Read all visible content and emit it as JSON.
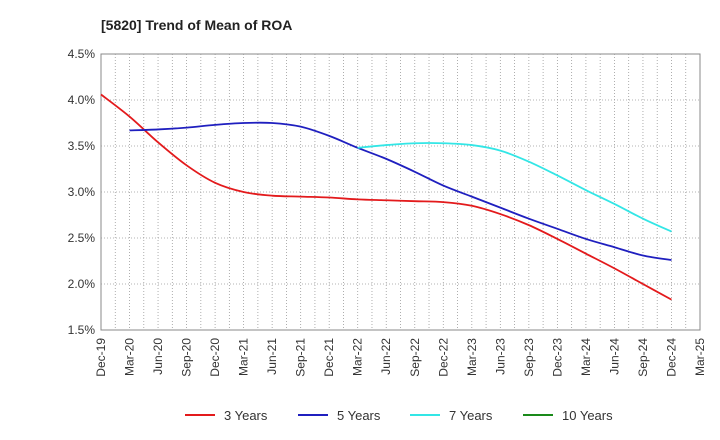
{
  "chart_data": {
    "type": "line",
    "title": "[5820]  Trend of Mean of ROA",
    "xlabel": "",
    "ylabel": "",
    "categories": [
      "Dec-19",
      "Mar-20",
      "Jun-20",
      "Sep-20",
      "Dec-20",
      "Mar-21",
      "Jun-21",
      "Sep-21",
      "Dec-21",
      "Mar-22",
      "Jun-22",
      "Sep-22",
      "Dec-22",
      "Mar-23",
      "Jun-23",
      "Sep-23",
      "Dec-23",
      "Mar-24",
      "Jun-24",
      "Sep-24",
      "Dec-24",
      "Mar-25"
    ],
    "ylim": [
      1.5,
      4.5
    ],
    "yticks": [
      1.5,
      2.0,
      2.5,
      3.0,
      3.5,
      4.0,
      4.5
    ],
    "ytick_labels": [
      "1.5%",
      "2.0%",
      "2.5%",
      "3.0%",
      "3.5%",
      "4.0%",
      "4.5%"
    ],
    "grid": "dotted",
    "legend_position": "bottom",
    "series": [
      {
        "name": "3 Years",
        "color": "#e31a1c",
        "values": [
          4.06,
          3.82,
          3.54,
          3.29,
          3.1,
          3.0,
          2.96,
          2.95,
          2.94,
          2.92,
          2.91,
          2.9,
          2.89,
          2.85,
          2.76,
          2.64,
          2.49,
          2.33,
          2.17,
          2.0,
          1.83,
          null
        ]
      },
      {
        "name": "5 Years",
        "color": "#1f1fbf",
        "values": [
          null,
          3.67,
          3.68,
          3.7,
          3.73,
          3.75,
          3.75,
          3.71,
          3.61,
          3.48,
          3.36,
          3.22,
          3.07,
          2.95,
          2.83,
          2.71,
          2.6,
          2.49,
          2.4,
          2.31,
          2.26,
          null
        ]
      },
      {
        "name": "7 Years",
        "color": "#33e6e6",
        "values": [
          null,
          null,
          null,
          null,
          null,
          null,
          null,
          null,
          null,
          3.48,
          3.51,
          3.53,
          3.53,
          3.51,
          3.45,
          3.33,
          3.18,
          3.02,
          2.87,
          2.71,
          2.57,
          null
        ]
      },
      {
        "name": "10 Years",
        "color": "#1a8a1a",
        "values": [
          null,
          null,
          null,
          null,
          null,
          null,
          null,
          null,
          null,
          null,
          null,
          null,
          null,
          null,
          null,
          null,
          null,
          null,
          null,
          null,
          null,
          null
        ]
      }
    ]
  }
}
